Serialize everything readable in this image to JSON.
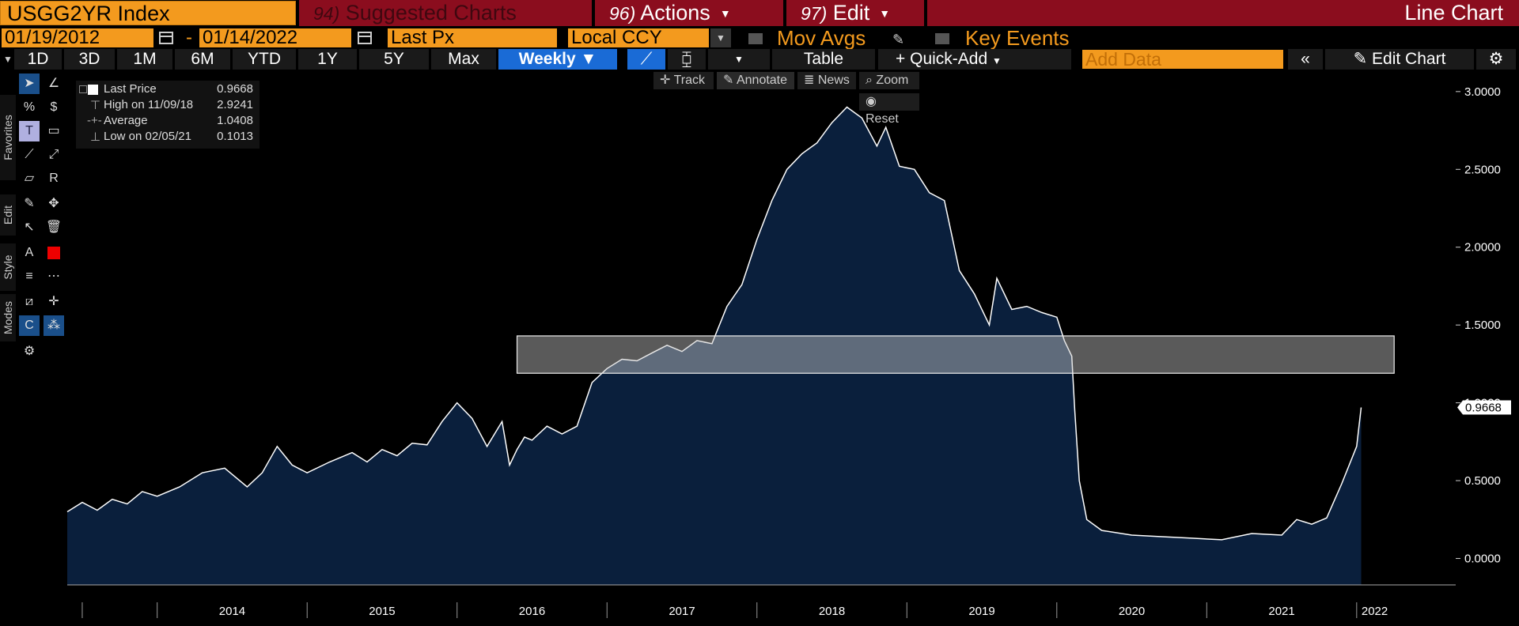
{
  "header": {
    "ticker": "USGG2YR Index",
    "suggested_num": "94)",
    "suggested_label": "Suggested Charts",
    "actions_num": "96)",
    "actions_label": "Actions",
    "edit_num": "97)",
    "edit_label": "Edit",
    "chart_type": "Line Chart"
  },
  "range": {
    "start_date": "01/19/2012",
    "separator": "-",
    "end_date": "01/14/2022",
    "field": "Last Px",
    "currency": "Local CCY",
    "mov_avgs": "Mov Avgs",
    "key_events": "Key Events"
  },
  "toolbar": {
    "periods": [
      "1D",
      "3D",
      "1M",
      "6M",
      "YTD",
      "1Y",
      "5Y",
      "Max"
    ],
    "frequency": "Weekly",
    "table": "Table",
    "quick_add": "Quick-Add",
    "add_data_placeholder": "Add Data",
    "edit_chart": "Edit Chart"
  },
  "side_tabs": [
    "Favorites",
    "Edit",
    "Style",
    "Modes"
  ],
  "chart_tools": {
    "track": "Track",
    "annotate": "Annotate",
    "news": "News",
    "zoom": "Zoom",
    "reset": "Reset"
  },
  "legend": {
    "last_label": "Last Price",
    "last_value": "0.9668",
    "high_label": "High on 11/09/18",
    "high_value": "2.9241",
    "avg_label": "Average",
    "avg_value": "1.0408",
    "low_label": "Low on 02/05/21",
    "low_value": "0.1013"
  },
  "colors": {
    "bloomberg_orange": "#f39a1e",
    "header_red": "#8b0d1e",
    "area_fill": "#0a1f3c",
    "line": "#ffffff",
    "active_blue": "#1a6bd6"
  },
  "chart_data": {
    "type": "area",
    "ylabel": "",
    "ylim": [
      -0.17,
      3.05
    ],
    "yticks": [
      "0.0000",
      "0.5000",
      "1.0000",
      "1.5000",
      "2.0000",
      "2.5000",
      "3.0000"
    ],
    "xticks": [
      "2014",
      "2015",
      "2016",
      "2017",
      "2018",
      "2019",
      "2020",
      "2021",
      "2022"
    ],
    "last_value_label": "0.9668",
    "x": [
      2013.4,
      2013.5,
      2013.6,
      2013.7,
      2013.8,
      2013.9,
      2014.0,
      2014.15,
      2014.3,
      2014.45,
      2014.6,
      2014.7,
      2014.8,
      2014.9,
      2015.0,
      2015.15,
      2015.3,
      2015.4,
      2015.5,
      2015.6,
      2015.7,
      2015.8,
      2015.9,
      2016.0,
      2016.1,
      2016.2,
      2016.3,
      2016.35,
      2016.4,
      2016.45,
      2016.5,
      2016.6,
      2016.7,
      2016.8,
      2016.9,
      2017.0,
      2017.1,
      2017.2,
      2017.3,
      2017.4,
      2017.5,
      2017.6,
      2017.7,
      2017.8,
      2017.9,
      2018.0,
      2018.1,
      2018.2,
      2018.3,
      2018.4,
      2018.5,
      2018.6,
      2018.7,
      2018.8,
      2018.86,
      2018.95,
      2019.05,
      2019.15,
      2019.25,
      2019.35,
      2019.45,
      2019.55,
      2019.6,
      2019.7,
      2019.8,
      2019.9,
      2020.0,
      2020.05,
      2020.1,
      2020.12,
      2020.15,
      2020.2,
      2020.3,
      2020.5,
      2020.7,
      2020.9,
      2021.1,
      2021.3,
      2021.5,
      2021.6,
      2021.7,
      2021.8,
      2021.9,
      2022.0,
      2022.03
    ],
    "values": [
      0.3,
      0.36,
      0.31,
      0.38,
      0.35,
      0.43,
      0.4,
      0.46,
      0.55,
      0.58,
      0.46,
      0.55,
      0.72,
      0.6,
      0.55,
      0.62,
      0.68,
      0.62,
      0.7,
      0.66,
      0.74,
      0.73,
      0.88,
      1.0,
      0.9,
      0.72,
      0.88,
      0.6,
      0.7,
      0.78,
      0.76,
      0.85,
      0.8,
      0.85,
      1.13,
      1.22,
      1.28,
      1.27,
      1.32,
      1.37,
      1.33,
      1.4,
      1.38,
      1.62,
      1.76,
      2.05,
      2.3,
      2.5,
      2.6,
      2.67,
      2.8,
      2.9,
      2.83,
      2.65,
      2.77,
      2.52,
      2.5,
      2.35,
      2.3,
      1.85,
      1.7,
      1.5,
      1.8,
      1.6,
      1.62,
      1.58,
      1.55,
      1.4,
      1.3,
      0.95,
      0.5,
      0.25,
      0.18,
      0.15,
      0.14,
      0.13,
      0.12,
      0.16,
      0.15,
      0.25,
      0.22,
      0.26,
      0.48,
      0.72,
      0.97
    ],
    "band_ylim": [
      1.19,
      1.43
    ],
    "band_x": [
      2016.4,
      2022.25
    ]
  }
}
